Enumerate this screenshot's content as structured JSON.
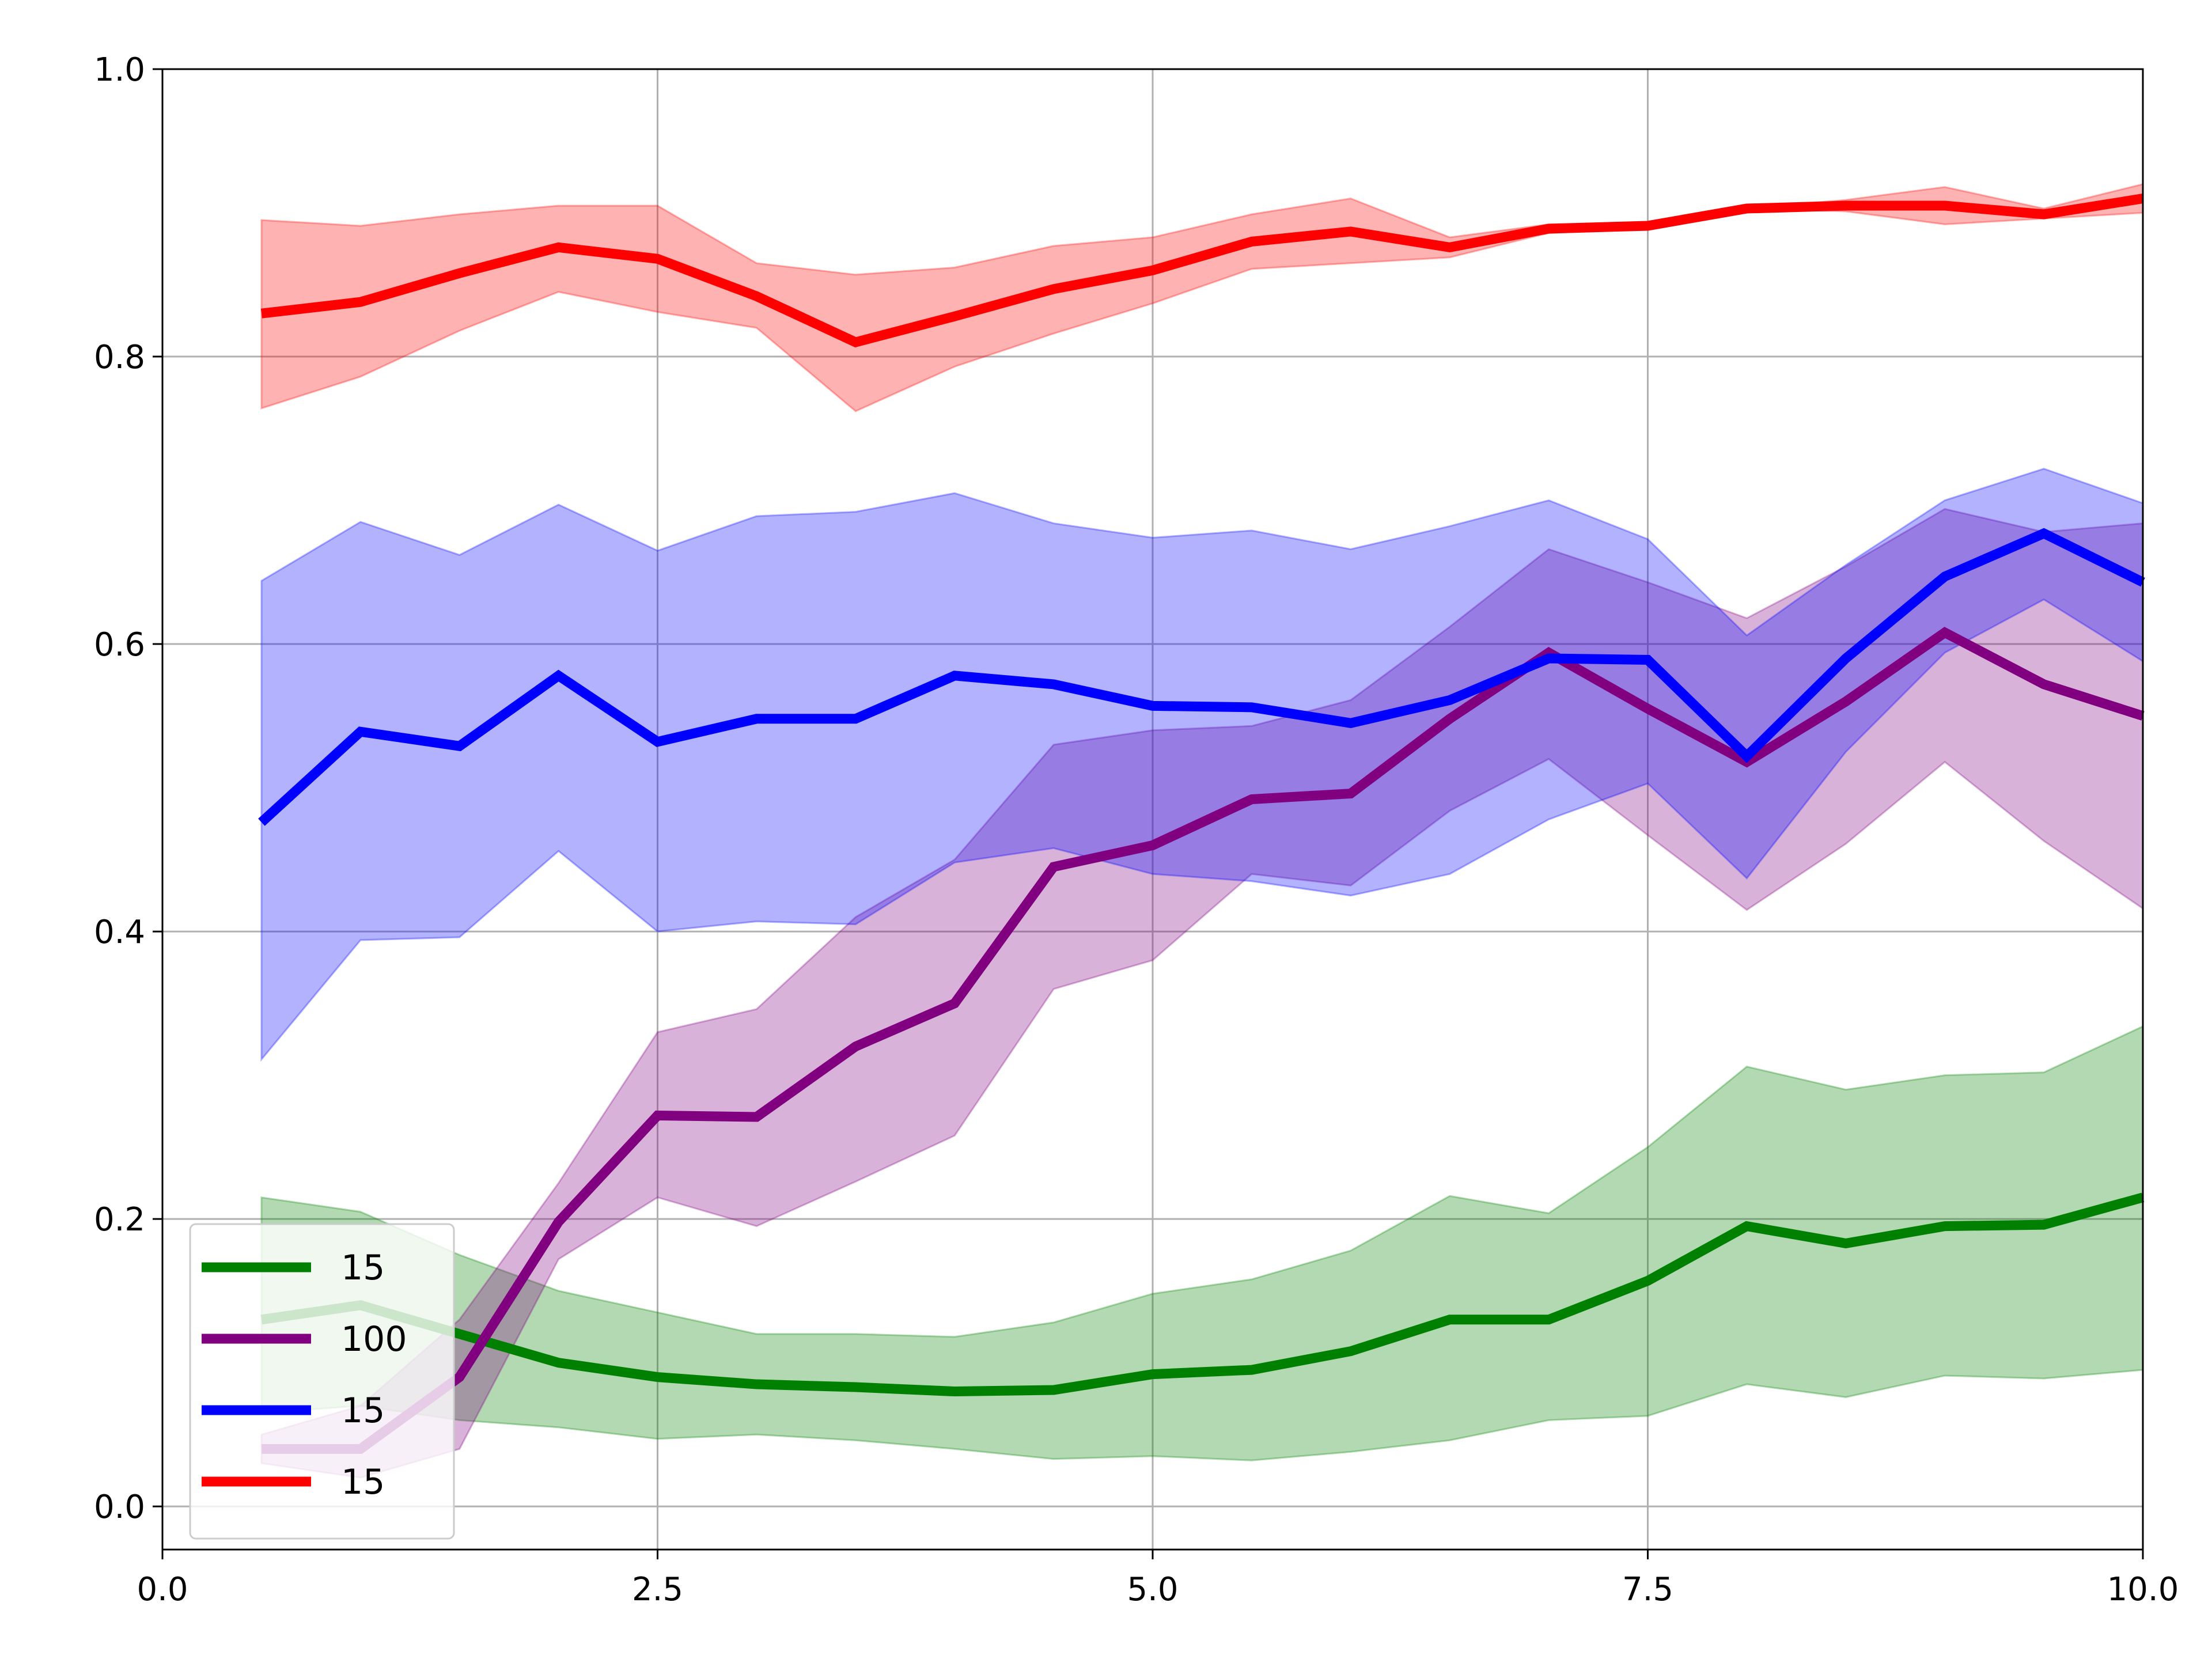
{
  "chart_data": {
    "type": "line",
    "title": "",
    "xlabel": "",
    "ylabel": "",
    "xlim": [
      0.0,
      10.0
    ],
    "ylim": [
      -0.03,
      1.0
    ],
    "xticks": [
      "0.0",
      "2.5",
      "5.0",
      "7.5",
      "10.0"
    ],
    "xtick_values": [
      0.0,
      2.5,
      5.0,
      7.5,
      10.0
    ],
    "yticks": [
      "0.0",
      "0.2",
      "0.4",
      "0.6",
      "0.8",
      "1.0"
    ],
    "ytick_values": [
      0.0,
      0.2,
      0.4,
      0.6,
      0.8,
      1.0
    ],
    "grid": true,
    "legend_position": "lower-left",
    "x": [
      0.5,
      1.0,
      1.5,
      2.0,
      2.5,
      3.0,
      3.5,
      4.0,
      4.5,
      5.0,
      5.5,
      6.0,
      6.5,
      7.0,
      7.5,
      8.0,
      8.5,
      9.0,
      9.5,
      10.0
    ],
    "series": [
      {
        "name": "15",
        "color": "#008000",
        "values": [
          0.13,
          0.14,
          0.12,
          0.1,
          0.09,
          0.085,
          0.083,
          0.08,
          0.081,
          0.092,
          0.095,
          0.108,
          0.13,
          0.13,
          0.157,
          0.195,
          0.183,
          0.195,
          0.196,
          0.215
        ],
        "upper": [
          0.215,
          0.205,
          0.175,
          0.15,
          0.135,
          0.12,
          0.12,
          0.118,
          0.128,
          0.148,
          0.158,
          0.178,
          0.216,
          0.204,
          0.25,
          0.306,
          0.29,
          0.3,
          0.302,
          0.334
        ],
        "lower": [
          0.065,
          0.07,
          0.06,
          0.055,
          0.047,
          0.05,
          0.046,
          0.04,
          0.033,
          0.035,
          0.032,
          0.038,
          0.046,
          0.06,
          0.063,
          0.085,
          0.076,
          0.091,
          0.089,
          0.095
        ]
      },
      {
        "name": "100",
        "color": "#800080",
        "values": [
          0.04,
          0.04,
          0.09,
          0.198,
          0.272,
          0.271,
          0.32,
          0.35,
          0.445,
          0.46,
          0.492,
          0.496,
          0.548,
          0.594,
          0.555,
          0.518,
          0.56,
          0.608,
          0.572,
          0.55
        ],
        "upper": [
          0.05,
          0.07,
          0.13,
          0.225,
          0.33,
          0.346,
          0.41,
          0.45,
          0.53,
          0.54,
          0.543,
          0.561,
          0.612,
          0.666,
          0.643,
          0.618,
          0.654,
          0.694,
          0.678,
          0.684
        ],
        "lower": [
          0.03,
          0.02,
          0.04,
          0.172,
          0.215,
          0.195,
          0.226,
          0.258,
          0.36,
          0.38,
          0.44,
          0.432,
          0.484,
          0.52,
          0.467,
          0.415,
          0.461,
          0.518,
          0.463,
          0.416
        ]
      },
      {
        "name": "15",
        "color": "#0000ff",
        "values": [
          0.476,
          0.539,
          0.529,
          0.578,
          0.532,
          0.548,
          0.548,
          0.578,
          0.572,
          0.557,
          0.556,
          0.545,
          0.561,
          0.59,
          0.589,
          0.522,
          0.59,
          0.647,
          0.677,
          0.643
        ],
        "upper": [
          0.644,
          0.685,
          0.662,
          0.697,
          0.665,
          0.689,
          0.692,
          0.705,
          0.684,
          0.674,
          0.679,
          0.666,
          0.682,
          0.7,
          0.673,
          0.606,
          0.655,
          0.7,
          0.722,
          0.698
        ],
        "lower": [
          0.311,
          0.394,
          0.396,
          0.456,
          0.4,
          0.407,
          0.405,
          0.448,
          0.458,
          0.44,
          0.435,
          0.425,
          0.44,
          0.478,
          0.503,
          0.437,
          0.525,
          0.594,
          0.631,
          0.588
        ]
      },
      {
        "name": "15",
        "color": "#ff0000",
        "values": [
          0.83,
          0.838,
          0.858,
          0.876,
          0.868,
          0.842,
          0.81,
          0.828,
          0.847,
          0.86,
          0.88,
          0.887,
          0.876,
          0.889,
          0.891,
          0.903,
          0.905,
          0.905,
          0.899,
          0.91
        ],
        "upper": [
          0.895,
          0.891,
          0.899,
          0.905,
          0.905,
          0.865,
          0.857,
          0.862,
          0.877,
          0.883,
          0.899,
          0.91,
          0.883,
          0.892,
          0.893,
          0.903,
          0.909,
          0.918,
          0.903,
          0.92
        ],
        "lower": [
          0.764,
          0.786,
          0.818,
          0.845,
          0.831,
          0.82,
          0.762,
          0.793,
          0.816,
          0.837,
          0.861,
          0.865,
          0.869,
          0.886,
          0.889,
          0.903,
          0.901,
          0.892,
          0.896,
          0.9
        ]
      }
    ]
  }
}
